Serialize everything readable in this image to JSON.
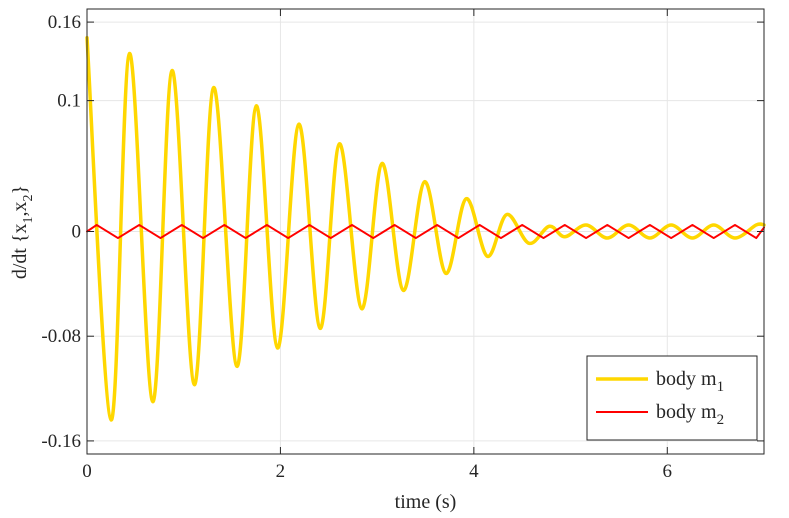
{
  "chart_data": {
    "type": "line",
    "title": "",
    "xlabel": "time (s)",
    "ylabel": "d/dt {x1,x2}",
    "ylabel_parts": {
      "prefix": "d/dt {x",
      "sub1": "1",
      "mid": ",x",
      "sub2": "2",
      "suffix": "}"
    },
    "xlim": [
      0,
      7
    ],
    "ylim": [
      -0.17,
      0.17
    ],
    "xticks": [
      0,
      2,
      4,
      6
    ],
    "xtick_labels": [
      "0",
      "2",
      "4",
      "6"
    ],
    "yticks": [
      -0.16,
      -0.08,
      0,
      0.1,
      0.16
    ],
    "ytick_labels": [
      "-0.16",
      "-0.08",
      "0",
      "0.1",
      "0.16"
    ],
    "grid": true,
    "legend_position": "bottom-right",
    "series": [
      {
        "name": "body m1",
        "name_base": "body m",
        "name_sub": "1",
        "color": "#ffd700",
        "line_width": 3.5,
        "description": "damped oscillation, peaks decaying from 0.148 to ~0.009",
        "x": [
          0.0,
          0.25,
          0.44,
          0.68,
          0.88,
          1.11,
          1.31,
          1.55,
          1.75,
          1.97,
          2.19,
          2.41,
          2.61,
          2.84,
          3.05,
          3.27,
          3.49,
          3.71,
          3.92,
          4.14,
          4.34,
          4.57,
          4.78,
          4.94,
          5.16,
          5.38,
          5.6,
          5.82,
          6.04,
          6.26,
          6.48,
          6.7,
          6.92,
          7.0
        ],
        "y": [
          0.148,
          -0.144,
          0.136,
          -0.13,
          0.123,
          -0.117,
          0.11,
          -0.103,
          0.096,
          -0.089,
          0.082,
          -0.074,
          0.067,
          -0.059,
          0.052,
          -0.045,
          0.038,
          -0.032,
          0.025,
          -0.019,
          0.013,
          -0.009,
          0.004,
          -0.004,
          0.005,
          -0.005,
          0.005,
          -0.005,
          0.005,
          -0.005,
          0.005,
          -0.005,
          0.005,
          0.005
        ]
      },
      {
        "name": "body m2",
        "name_base": "body m",
        "name_sub": "2",
        "color": "#ff0000",
        "line_width": 2,
        "description": "small oscillation of amplitude ~0.005",
        "x": [
          0.0,
          0.1,
          0.32,
          0.54,
          0.76,
          0.98,
          1.2,
          1.42,
          1.64,
          1.86,
          2.08,
          2.3,
          2.52,
          2.74,
          2.96,
          3.18,
          3.4,
          3.62,
          3.84,
          4.06,
          4.28,
          4.5,
          4.72,
          4.94,
          5.16,
          5.38,
          5.6,
          5.82,
          6.04,
          6.26,
          6.48,
          6.7,
          6.92,
          7.0
        ],
        "y": [
          0.0,
          0.005,
          -0.005,
          0.005,
          -0.005,
          0.005,
          -0.005,
          0.005,
          -0.005,
          0.005,
          -0.005,
          0.005,
          -0.005,
          0.005,
          -0.005,
          0.005,
          -0.005,
          0.005,
          -0.005,
          0.005,
          -0.005,
          0.005,
          -0.005,
          0.005,
          -0.005,
          0.005,
          -0.005,
          0.005,
          -0.005,
          0.005,
          -0.005,
          0.005,
          -0.005,
          0.003
        ]
      }
    ]
  }
}
